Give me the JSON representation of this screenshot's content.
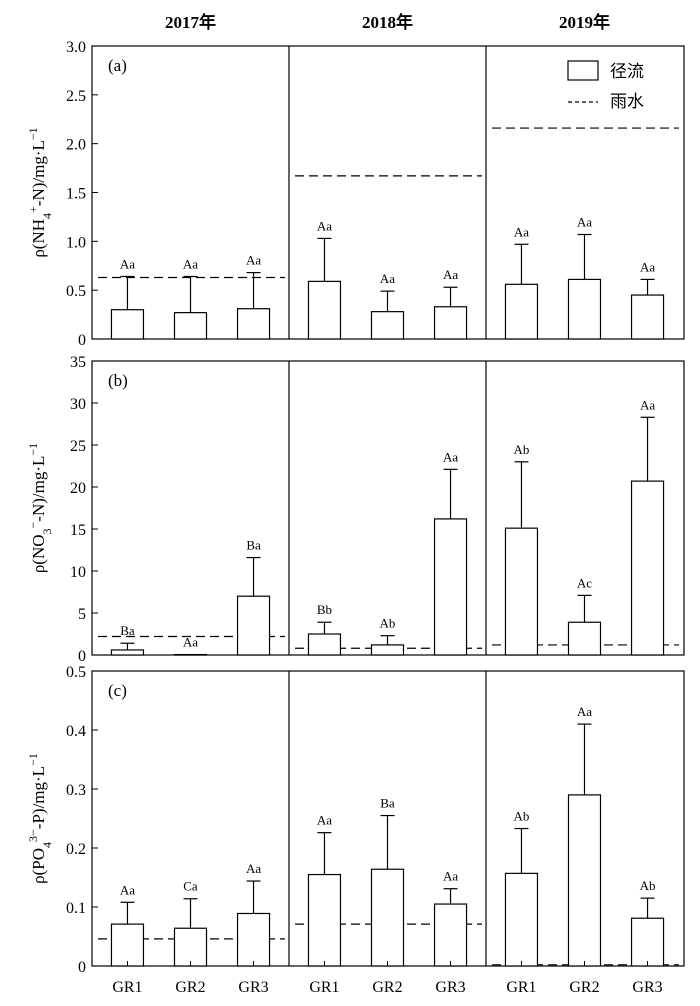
{
  "years": [
    "2017年",
    "2018年",
    "2019年"
  ],
  "x_categories": [
    "GR1",
    "GR2",
    "GR3"
  ],
  "legend": {
    "runoff": "径流",
    "rain": "雨水"
  },
  "chart_data": [
    {
      "type": "bar",
      "panel_label": "(a)",
      "ylabel": "ρ(NH4+-N)/mg·L−1",
      "ylabel_parts": {
        "pre": "ρ(NH",
        "sub": "4",
        "sup": "+",
        "post": "-N)/mg·L",
        "sup2": "−1"
      },
      "ylim": [
        0,
        3.0
      ],
      "yticks": [
        "0",
        "0.5",
        "1.0",
        "1.5",
        "2.0",
        "2.5",
        "3.0"
      ],
      "groups": [
        {
          "year": "2017年",
          "categories": [
            "GR1",
            "GR2",
            "GR3"
          ],
          "values": [
            0.3,
            0.27,
            0.31
          ],
          "errors": [
            0.34,
            0.37,
            0.37
          ],
          "labels": [
            "Aa",
            "Aa",
            "Aa"
          ],
          "rain": 0.63
        },
        {
          "year": "2018年",
          "categories": [
            "GR1",
            "GR2",
            "GR3"
          ],
          "values": [
            0.59,
            0.28,
            0.33
          ],
          "errors": [
            0.44,
            0.21,
            0.2
          ],
          "labels": [
            "Aa",
            "Aa",
            "Aa"
          ],
          "rain": 1.67
        },
        {
          "year": "2019年",
          "categories": [
            "GR1",
            "GR2",
            "GR3"
          ],
          "values": [
            0.56,
            0.61,
            0.45
          ],
          "errors": [
            0.41,
            0.46,
            0.16
          ],
          "labels": [
            "Aa",
            "Aa",
            "Aa"
          ],
          "rain": 2.16
        }
      ]
    },
    {
      "type": "bar",
      "panel_label": "(b)",
      "ylabel": "ρ(NO3−-N)/mg·L−1",
      "ylabel_parts": {
        "pre": "ρ(NO",
        "sub": "3",
        "sup": "−",
        "post": "-N)/mg·L",
        "sup2": "−1"
      },
      "ylim": [
        0,
        35
      ],
      "yticks": [
        "0",
        "5",
        "10",
        "15",
        "20",
        "25",
        "30",
        "35"
      ],
      "groups": [
        {
          "year": "2017年",
          "categories": [
            "GR1",
            "GR2",
            "GR3"
          ],
          "values": [
            0.6,
            0.05,
            7.0
          ],
          "errors": [
            0.8,
            0.0,
            4.6
          ],
          "labels": [
            "Ba",
            "Aa",
            "Ba"
          ],
          "rain": 2.2
        },
        {
          "year": "2018年",
          "categories": [
            "GR1",
            "GR2",
            "GR3"
          ],
          "values": [
            2.5,
            1.2,
            16.2
          ],
          "errors": [
            1.4,
            1.1,
            5.9
          ],
          "labels": [
            "Bb",
            "Ab",
            "Aa"
          ],
          "rain": 0.8
        },
        {
          "year": "2019年",
          "categories": [
            "GR1",
            "GR2",
            "GR3"
          ],
          "values": [
            15.1,
            3.9,
            20.7
          ],
          "errors": [
            7.9,
            3.2,
            7.6
          ],
          "labels": [
            "Ab",
            "Ac",
            "Aa"
          ],
          "rain": 1.2
        }
      ]
    },
    {
      "type": "bar",
      "panel_label": "(c)",
      "ylabel": "ρ(PO43−-P)/mg·L−1",
      "ylabel_parts": {
        "pre": "ρ(PO",
        "sub": "4",
        "sup": "3−",
        "post": "-P)/mg·L",
        "sup2": "−1"
      },
      "ylim": [
        0,
        0.5
      ],
      "yticks": [
        "0",
        "0.1",
        "0.2",
        "0.3",
        "0.4",
        "0.5"
      ],
      "groups": [
        {
          "year": "2017年",
          "categories": [
            "GR1",
            "GR2",
            "GR3"
          ],
          "values": [
            0.071,
            0.064,
            0.089
          ],
          "errors": [
            0.037,
            0.05,
            0.055
          ],
          "labels": [
            "Aa",
            "Ca",
            "Aa"
          ],
          "rain": 0.046
        },
        {
          "year": "2018年",
          "categories": [
            "GR1",
            "GR2",
            "GR3"
          ],
          "values": [
            0.155,
            0.164,
            0.105
          ],
          "errors": [
            0.071,
            0.091,
            0.026
          ],
          "labels": [
            "Aa",
            "Ba",
            "Aa"
          ],
          "rain": 0.071
        },
        {
          "year": "2019年",
          "categories": [
            "GR1",
            "GR2",
            "GR3"
          ],
          "values": [
            0.157,
            0.29,
            0.081
          ],
          "errors": [
            0.076,
            0.12,
            0.034
          ],
          "labels": [
            "Ab",
            "Aa",
            "Ab"
          ],
          "rain": 0.002
        }
      ]
    }
  ]
}
